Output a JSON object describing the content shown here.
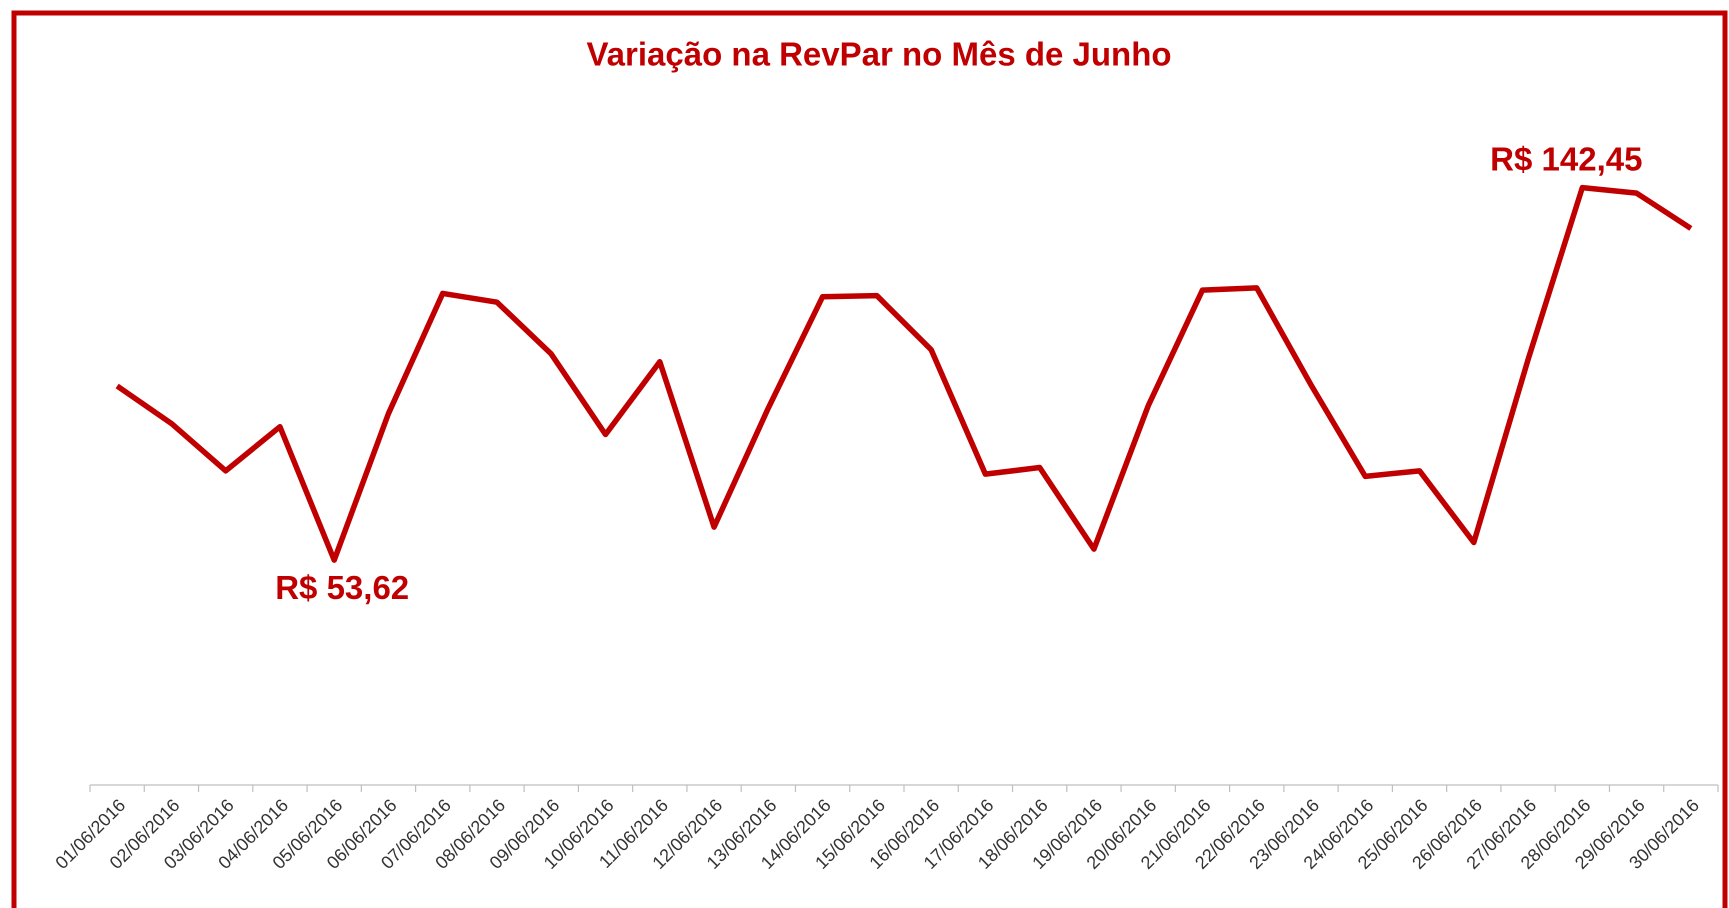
{
  "chart_data": {
    "type": "line",
    "title": "Variação na RevPar no Mês de Junho",
    "categories": [
      "01/06/2016",
      "02/06/2016",
      "03/06/2016",
      "04/06/2016",
      "05/06/2016",
      "06/06/2016",
      "07/06/2016",
      "08/06/2016",
      "09/06/2016",
      "10/06/2016",
      "11/06/2016",
      "12/06/2016",
      "13/06/2016",
      "14/06/2016",
      "15/06/2016",
      "16/06/2016",
      "17/06/2016",
      "18/06/2016",
      "19/06/2016",
      "20/06/2016",
      "21/06/2016",
      "22/06/2016",
      "23/06/2016",
      "24/06/2016",
      "25/06/2016",
      "26/06/2016",
      "27/06/2016",
      "28/06/2016",
      "29/06/2016",
      "30/06/2016"
    ],
    "series": [
      {
        "name": "RevPar",
        "color": "#c00000",
        "values": [
          95.14,
          86.21,
          74.91,
          85.42,
          53.62,
          88.57,
          117.22,
          115.12,
          102.76,
          83.58,
          100.92,
          61.5,
          89.89,
          116.43,
          116.69,
          103.81,
          74.12,
          75.7,
          56.25,
          90.41,
          118.01,
          118.53,
          95.41,
          73.59,
          74.91,
          57.82,
          101.45,
          142.45,
          141.13,
          132.72
        ],
        "value_labels": [
          null,
          null,
          null,
          null,
          "R$ 53,62",
          null,
          null,
          null,
          null,
          null,
          null,
          null,
          null,
          null,
          null,
          null,
          null,
          null,
          null,
          null,
          null,
          null,
          null,
          null,
          null,
          null,
          null,
          "R$ 142,45",
          null,
          null
        ]
      }
    ],
    "ylim": [
      0,
      160
    ]
  }
}
